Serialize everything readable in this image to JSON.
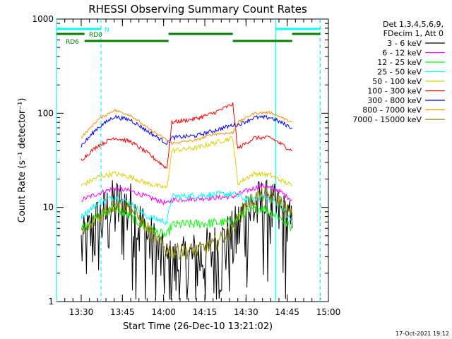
{
  "chart_data": {
    "type": "line",
    "title": "RHESSI Observing Summary Count Rates",
    "xlabel": "Start Time (26-Dec-10 13:21:02)",
    "ylabel": "Count Rate (s⁻¹ detector⁻¹)",
    "y_scale": "log",
    "xlim_min": [
      13.35,
      15.0
    ],
    "ylim": [
      1,
      1000
    ],
    "x_tick_labels": [
      "13:30",
      "13:45",
      "14:00",
      "14:15",
      "14:30",
      "14:45",
      "15:00"
    ],
    "x_tick_values_min": [
      13.5,
      13.75,
      14.0,
      14.25,
      14.5,
      14.75,
      15.0
    ],
    "y_tick_labels": [
      "1",
      "10",
      "100",
      "1000"
    ],
    "y_tick_values": [
      1,
      10,
      100,
      1000
    ],
    "legend": {
      "placement": "right",
      "header": [
        "Det 1,3,4,5,6,9,",
        "FDecim 1, Att 0"
      ],
      "entries": [
        {
          "label": "3 - 6 keV",
          "color": "#000000"
        },
        {
          "label": "6 - 12 keV",
          "color": "#ff00ff"
        },
        {
          "label": "12 - 25 keV",
          "color": "#00ff00"
        },
        {
          "label": "25 - 50 keV",
          "color": "#00ffff"
        },
        {
          "label": "50 - 100 keV",
          "color": "#e0d000"
        },
        {
          "label": "100 - 300 keV",
          "color": "#ff0000"
        },
        {
          "label": "300 - 800 keV",
          "color": "#0000ff"
        },
        {
          "label": "800 - 7000 keV",
          "color": "#ff8c00"
        },
        {
          "label": "7000 - 15000 keV",
          "color": "#808000"
        }
      ]
    },
    "bars": [
      {
        "label": "N",
        "color": "#00ffff",
        "segments": [
          [
            13.35,
            13.62
          ],
          [
            14.68,
            14.95
          ]
        ],
        "row": 1
      },
      {
        "label": "RD0",
        "color": "#008000",
        "segments": [
          [
            13.35,
            13.52
          ],
          [
            14.03,
            14.42
          ],
          [
            14.78,
            14.95
          ]
        ],
        "row": 2
      },
      {
        "label": "RD6",
        "color": "#008000",
        "segments": [
          [
            13.52,
            14.03
          ],
          [
            14.42,
            14.78
          ]
        ],
        "row": 3
      }
    ],
    "vlines": [
      {
        "x": 13.35,
        "style": "solid",
        "color": "#00ffff"
      },
      {
        "x": 13.62,
        "style": "dashed",
        "color": "#00ffff"
      },
      {
        "x": 14.68,
        "style": "solid",
        "color": "#00ffff"
      },
      {
        "x": 14.95,
        "style": "dashed",
        "color": "#00ffff"
      }
    ],
    "series": [
      {
        "name": "3 - 6 keV",
        "color": "#000000",
        "noise": 0.9,
        "x": [
          13.5,
          13.6,
          13.7,
          13.8,
          13.9,
          14.02,
          14.1,
          14.2,
          14.3,
          14.42,
          14.5,
          14.6,
          14.7,
          14.78
        ],
        "y": [
          4,
          7,
          11,
          10,
          5,
          2.5,
          2.5,
          3,
          3.5,
          5,
          9,
          11,
          9,
          6
        ]
      },
      {
        "name": "6 - 12 keV",
        "color": "#ff00ff",
        "noise": 0.06,
        "x": [
          13.5,
          13.6,
          13.7,
          13.8,
          13.9,
          14.02,
          14.05,
          14.42,
          14.5,
          14.6,
          14.7,
          14.78
        ],
        "y": [
          12,
          14,
          16,
          15,
          13,
          11,
          12,
          13,
          15,
          17,
          15,
          12
        ]
      },
      {
        "name": "12 - 25 keV",
        "color": "#00ff00",
        "noise": 0.12,
        "x": [
          13.5,
          13.6,
          13.7,
          13.8,
          13.9,
          14.02,
          14.05,
          14.42,
          14.5,
          14.6,
          14.7,
          14.78
        ],
        "y": [
          6,
          8,
          10,
          8,
          6,
          5,
          6.5,
          7,
          9,
          10,
          8,
          6
        ]
      },
      {
        "name": "25 - 50 keV",
        "color": "#00ffff",
        "noise": 0.08,
        "x": [
          13.5,
          13.6,
          13.7,
          13.8,
          13.9,
          14.02,
          14.05,
          14.42,
          14.5,
          14.6,
          14.7,
          14.78
        ],
        "y": [
          8,
          11,
          13,
          11,
          8,
          7,
          13,
          14,
          12,
          13,
          11,
          7
        ]
      },
      {
        "name": "50 - 100 keV",
        "color": "#e0d000",
        "noise": 0.06,
        "x": [
          13.5,
          13.6,
          13.7,
          13.8,
          13.9,
          14.02,
          14.05,
          14.2,
          14.3,
          14.42,
          14.45,
          14.55,
          14.65,
          14.78
        ],
        "y": [
          17,
          21,
          23,
          21,
          18,
          16,
          40,
          43,
          48,
          55,
          18,
          23,
          22,
          17
        ]
      },
      {
        "name": "100 - 300 keV",
        "color": "#ff0000",
        "noise": 0.05,
        "x": [
          13.5,
          13.6,
          13.7,
          13.8,
          13.9,
          14.02,
          14.05,
          14.2,
          14.3,
          14.42,
          14.45,
          14.55,
          14.65,
          14.78
        ],
        "y": [
          32,
          45,
          55,
          50,
          38,
          26,
          80,
          88,
          100,
          125,
          42,
          55,
          55,
          40
        ]
      },
      {
        "name": "300 - 800 keV",
        "color": "#0000ff",
        "noise": 0.05,
        "x": [
          13.5,
          13.6,
          13.7,
          13.8,
          13.9,
          14.02,
          14.05,
          14.2,
          14.3,
          14.42,
          14.45,
          14.55,
          14.65,
          14.78
        ],
        "y": [
          45,
          70,
          92,
          85,
          65,
          48,
          55,
          58,
          65,
          75,
          75,
          90,
          90,
          70
        ]
      },
      {
        "name": "800 - 7000 keV",
        "color": "#ff8c00",
        "noise": 0.03,
        "x": [
          13.5,
          13.6,
          13.7,
          13.8,
          13.9,
          14.02,
          14.05,
          14.2,
          14.3,
          14.42,
          14.45,
          14.55,
          14.65,
          14.78
        ],
        "y": [
          55,
          85,
          108,
          95,
          70,
          52,
          48,
          52,
          60,
          62,
          80,
          100,
          102,
          80
        ]
      },
      {
        "name": "7000 - 15000 keV",
        "color": "#808000",
        "noise": 0.2,
        "x": [
          13.5,
          13.6,
          13.7,
          13.8,
          13.9,
          14.02,
          14.1,
          14.2,
          14.3,
          14.42,
          14.5,
          14.6,
          14.7,
          14.78
        ],
        "y": [
          5,
          8,
          11,
          10,
          6,
          3.5,
          3.5,
          3.5,
          4,
          6,
          11,
          14,
          12,
          8
        ]
      }
    ]
  },
  "footer": {
    "date": "17-Oct-2021 19:12"
  }
}
